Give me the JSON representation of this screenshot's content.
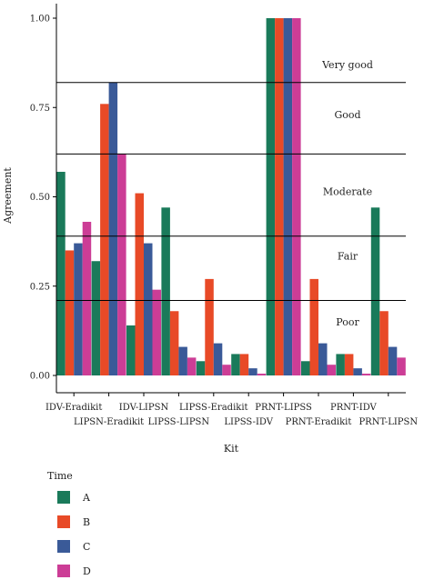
{
  "chart_data": {
    "type": "bar",
    "title": "",
    "xlabel": "Kit",
    "ylabel": "Agreement",
    "ylim": [
      0,
      1.05
    ],
    "yticks": [
      0.0,
      0.25,
      0.5,
      0.75,
      1.0
    ],
    "ytick_labels": [
      "0.00",
      "0.25",
      "0.50",
      "0.75",
      "1.00"
    ],
    "grid": false,
    "legend_position": "bottom-left",
    "legend_title": "Time",
    "categories": [
      "IDV-Eradikit",
      "LIPSN-Eradikit",
      "IDV-LIPSN",
      "LIPSS-LIPSN",
      "LIPSS-Eradikit",
      "LIPSS-IDV",
      "PRNT-LIPSS",
      "PRNT-Eradikit",
      "PRNT-IDV",
      "PRNT-LIPSN"
    ],
    "series": [
      {
        "name": "A",
        "color": "#1a7a5a",
        "values": [
          0.57,
          0.32,
          0.14,
          0.47,
          0.04,
          0.06,
          1.0,
          0.04,
          0.06,
          0.47
        ]
      },
      {
        "name": "B",
        "color": "#e84a27",
        "values": [
          0.35,
          0.76,
          0.51,
          0.18,
          0.27,
          0.06,
          1.0,
          0.27,
          0.06,
          0.18
        ]
      },
      {
        "name": "C",
        "color": "#3a5a98",
        "values": [
          0.37,
          0.82,
          0.37,
          0.08,
          0.09,
          0.02,
          1.0,
          0.09,
          0.02,
          0.08
        ]
      },
      {
        "name": "D",
        "color": "#cc3d96",
        "values": [
          0.43,
          0.62,
          0.24,
          0.05,
          0.03,
          0.005,
          1.0,
          0.03,
          0.005,
          0.05
        ]
      }
    ],
    "reference_lines": [
      {
        "value": 0.82,
        "label": "Very good",
        "label_value": 0.87
      },
      {
        "value": 0.62,
        "label": "Good",
        "label_value": 0.73
      },
      {
        "value": 0.39,
        "label": "Moderate",
        "label_value": 0.515
      },
      {
        "value": 0.21,
        "label": "Fair",
        "label_value": 0.335
      },
      {
        "label": "Poor",
        "label_value": 0.15
      }
    ]
  }
}
